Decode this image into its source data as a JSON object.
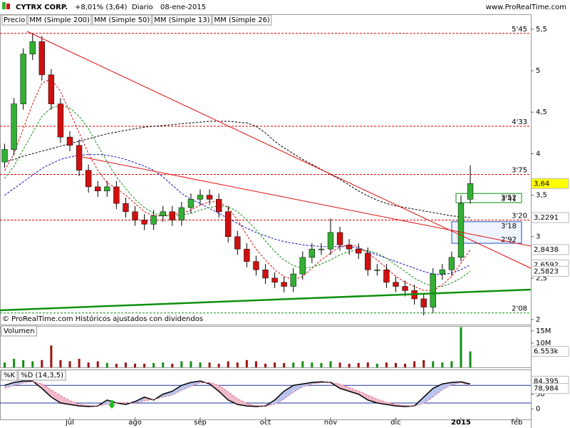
{
  "header": {
    "symbol": "CYTRX CORP.",
    "change": "+8,01% (3,64)",
    "period": "Diario",
    "date": "08-ene-2015",
    "site": "www.ProRealTime.com"
  },
  "chart_data": [
    {
      "type": "candlestick",
      "price_label": "Precio",
      "footer": "© ProRealTime.com  Históricos ajustados con dividendos",
      "categories": [
        null,
        null,
        null,
        null,
        null,
        null,
        null,
        "jul",
        null,
        null,
        null,
        null,
        null,
        null,
        "ago",
        null,
        null,
        null,
        null,
        null,
        null,
        "sep",
        null,
        null,
        null,
        null,
        null,
        null,
        "oct",
        null,
        null,
        null,
        null,
        null,
        null,
        "nov",
        null,
        null,
        null,
        null,
        null,
        null,
        "dic",
        null,
        null,
        null,
        null,
        null,
        null,
        "2015",
        null,
        null,
        null,
        null,
        null,
        "feb",
        null
      ],
      "open": [
        3.9,
        4.05,
        4.6,
        5.2,
        5.35,
        4.95,
        4.6,
        4.2,
        4.1,
        3.8,
        3.6,
        3.55,
        3.6,
        3.4,
        3.3,
        3.2,
        3.15,
        3.25,
        3.3,
        3.2,
        3.35,
        3.45,
        3.5,
        3.45,
        3.3,
        3.0,
        2.85,
        2.7,
        2.6,
        2.5,
        2.45,
        2.4,
        2.55,
        2.75,
        2.85,
        2.85,
        3.05,
        2.9,
        2.85,
        2.8,
        2.6,
        2.6,
        2.45,
        2.4,
        2.35,
        2.25,
        2.15,
        2.55,
        2.6,
        2.75,
        3.45,
        null,
        null,
        null,
        null,
        null,
        null
      ],
      "high": [
        4.12,
        4.67,
        5.27,
        5.45,
        5.42,
        5.02,
        4.67,
        4.27,
        4.17,
        3.87,
        3.67,
        3.67,
        3.67,
        3.47,
        3.37,
        3.27,
        3.32,
        3.37,
        3.37,
        3.42,
        3.52,
        3.57,
        3.57,
        3.52,
        3.37,
        3.07,
        2.92,
        2.77,
        2.67,
        2.57,
        2.52,
        2.62,
        2.82,
        2.92,
        2.92,
        3.22,
        3.12,
        2.97,
        2.92,
        2.87,
        2.67,
        2.67,
        2.52,
        2.47,
        2.42,
        2.32,
        2.62,
        2.67,
        2.82,
        3.5,
        3.86,
        null,
        null,
        null,
        null,
        null,
        null
      ],
      "low": [
        3.83,
        3.98,
        4.53,
        5.13,
        4.88,
        4.53,
        4.13,
        4.03,
        3.73,
        3.53,
        3.48,
        3.48,
        3.33,
        3.23,
        3.13,
        3.08,
        3.08,
        3.18,
        3.13,
        3.13,
        3.28,
        3.38,
        3.38,
        3.23,
        2.93,
        2.78,
        2.63,
        2.53,
        2.43,
        2.38,
        2.33,
        2.33,
        2.48,
        2.68,
        2.78,
        2.78,
        2.83,
        2.78,
        2.73,
        2.53,
        2.53,
        2.38,
        2.33,
        2.28,
        2.18,
        2.05,
        2.08,
        2.48,
        2.53,
        2.7,
        3.4,
        null,
        null,
        null,
        null,
        null,
        null
      ],
      "close": [
        4.05,
        4.6,
        5.2,
        5.35,
        4.95,
        4.6,
        4.2,
        4.1,
        3.8,
        3.6,
        3.55,
        3.6,
        3.4,
        3.3,
        3.2,
        3.15,
        3.25,
        3.3,
        3.2,
        3.35,
        3.45,
        3.5,
        3.45,
        3.3,
        3.0,
        2.85,
        2.7,
        2.6,
        2.5,
        2.45,
        2.4,
        2.55,
        2.75,
        2.85,
        2.85,
        3.05,
        2.9,
        2.85,
        2.8,
        2.6,
        2.6,
        2.45,
        2.4,
        2.35,
        2.25,
        2.15,
        2.55,
        2.6,
        2.75,
        3.4,
        3.64,
        null,
        null,
        null,
        null,
        null,
        null
      ],
      "last_label": "3,64",
      "tag_fill": "#ffff00",
      "up_color": "#33b033",
      "down_color": "#d01010",
      "series": [
        {
          "name": "MM (Simple 200)",
          "color": "#000000",
          "last_label": "3,2291",
          "values": [
            3.9,
            3.93,
            3.97,
            4.0,
            4.03,
            4.06,
            4.09,
            4.12,
            4.15,
            4.18,
            4.21,
            4.24,
            4.26,
            4.28,
            4.3,
            4.32,
            4.33,
            4.34,
            4.35,
            4.36,
            4.37,
            4.38,
            4.39,
            4.39,
            4.39,
            4.38,
            4.37,
            4.33,
            4.25,
            4.15,
            4.07,
            4.0,
            3.93,
            3.87,
            3.81,
            3.75,
            3.69,
            3.62,
            3.55,
            3.49,
            3.44,
            3.4,
            3.37,
            3.35,
            3.33,
            3.31,
            3.29,
            3.27,
            3.25,
            3.24,
            3.2291,
            null,
            null,
            null,
            null,
            null,
            null
          ]
        },
        {
          "name": "MM (Simple 50)",
          "color": "#1010c0",
          "last_label": "2,6592",
          "values": [
            3.5,
            3.58,
            3.66,
            3.74,
            3.82,
            3.88,
            3.93,
            3.96,
            3.98,
            3.99,
            3.99,
            3.98,
            3.96,
            3.93,
            3.89,
            3.85,
            3.8,
            3.72,
            3.62,
            3.52,
            3.45,
            3.4,
            3.34,
            3.28,
            3.22,
            3.16,
            3.1,
            3.05,
            3.01,
            2.97,
            2.94,
            2.92,
            2.9,
            2.89,
            2.88,
            2.88,
            2.88,
            2.88,
            2.86,
            2.82,
            2.78,
            2.74,
            2.7,
            2.66,
            2.62,
            2.58,
            2.55,
            2.54,
            2.56,
            2.6,
            2.6592,
            null,
            null,
            null,
            null,
            null,
            null
          ]
        },
        {
          "name": "MM (Simple 13)",
          "color": "#e01010",
          "last_label": "2,8438",
          "values": [
            3.8,
            4.0,
            4.3,
            4.6,
            4.85,
            4.9,
            4.75,
            4.5,
            4.25,
            4.0,
            3.8,
            3.65,
            3.58,
            3.5,
            3.4,
            3.3,
            3.25,
            3.25,
            3.27,
            3.28,
            3.32,
            3.38,
            3.42,
            3.42,
            3.35,
            3.2,
            3.02,
            2.85,
            2.72,
            2.6,
            2.52,
            2.48,
            2.52,
            2.62,
            2.72,
            2.8,
            2.88,
            2.9,
            2.88,
            2.8,
            2.72,
            2.62,
            2.52,
            2.45,
            2.4,
            2.35,
            2.35,
            2.42,
            2.52,
            2.68,
            2.8438,
            null,
            null,
            null,
            null,
            null,
            null
          ]
        },
        {
          "name": "MM (Simple 26)",
          "color": "#109010",
          "last_label": "2,5823",
          "values": [
            3.7,
            3.85,
            4.05,
            4.25,
            4.45,
            4.55,
            4.58,
            4.55,
            4.45,
            4.3,
            4.1,
            3.9,
            3.72,
            3.58,
            3.45,
            3.35,
            3.28,
            3.25,
            3.25,
            3.26,
            3.28,
            3.32,
            3.35,
            3.37,
            3.36,
            3.3,
            3.2,
            3.08,
            2.95,
            2.82,
            2.72,
            2.65,
            2.62,
            2.63,
            2.67,
            2.72,
            2.78,
            2.82,
            2.84,
            2.83,
            2.8,
            2.74,
            2.66,
            2.58,
            2.5,
            2.44,
            2.4,
            2.4,
            2.44,
            2.5,
            2.5823,
            null,
            null,
            null,
            null,
            null,
            null
          ]
        }
      ],
      "levels": [
        {
          "value": 5.45,
          "label": "5'45",
          "color": "#e00000"
        },
        {
          "value": 4.33,
          "label": "4'33",
          "color": "#e00000"
        },
        {
          "value": 3.75,
          "label": "3'75",
          "color": "#e00000"
        },
        {
          "value": 3.2,
          "label": "3'20",
          "color": "#e00000"
        },
        {
          "value": 2.08,
          "label": "2'08",
          "color": "#109010"
        }
      ],
      "zones": [
        {
          "top": {
            "value": 3.52,
            "label": "3'52"
          },
          "bottom": {
            "value": 3.41,
            "label": "3'41"
          },
          "color": "#109010",
          "fill": "#ffffff"
        },
        {
          "top": {
            "value": 3.18,
            "label": "3'18"
          },
          "bottom": {
            "value": 2.92,
            "label": "2'92"
          },
          "color": "#2050c0",
          "fill": "#eef3ff"
        }
      ],
      "ylim": [
        1.94,
        5.68
      ],
      "yticks": [
        {
          "value": 5.5,
          "label": "5,5"
        },
        5,
        {
          "value": 4.5,
          "label": "4,5"
        },
        4,
        {
          "value": 3.5,
          "label": "3,5"
        },
        3,
        {
          "value": 2.5,
          "label": "2,5"
        },
        2
      ],
      "grid": false
    },
    {
      "type": "bar",
      "title": "Volumen",
      "last_label": "6.553k",
      "up_color": "#109010",
      "down_color": "#a01010",
      "values": [
        2000000,
        3500000,
        3000000,
        2500000,
        3000000,
        9000000,
        3000000,
        2500000,
        3500000,
        2000000,
        2500000,
        1800000,
        1500000,
        2000000,
        1500000,
        1500000,
        1800000,
        2000000,
        1500000,
        2500000,
        2500000,
        2000000,
        2000000,
        1500000,
        2500000,
        2000000,
        3000000,
        2500000,
        1500000,
        2000000,
        1800000,
        2000000,
        2500000,
        2000000,
        1800000,
        2500000,
        2000000,
        1500000,
        1800000,
        2000000,
        1500000,
        2000000,
        1800000,
        1500000,
        2500000,
        3000000,
        2500000,
        2000000,
        2500000,
        16500000,
        6553000,
        null,
        null,
        null,
        null,
        null,
        null
      ],
      "ylim": [
        0,
        17000000
      ],
      "yticks": [
        {
          "value": 15000000,
          "label": "15M"
        },
        {
          "value": 10000000,
          "label": "10M"
        }
      ]
    },
    {
      "type": "line",
      "ylim": [
        -36,
        134
      ],
      "yticks": [
        100,
        50,
        0
      ],
      "levels": [
        80,
        20
      ],
      "series": [
        {
          "name": "%K",
          "color": "#000000",
          "last_label": "84,395",
          "values": [
            80,
            90,
            95,
            95,
            70,
            40,
            20,
            15,
            10,
            8,
            10,
            30,
            20,
            15,
            25,
            40,
            30,
            50,
            60,
            80,
            90,
            95,
            85,
            60,
            30,
            15,
            10,
            8,
            10,
            30,
            60,
            80,
            85,
            90,
            92,
            90,
            70,
            60,
            50,
            30,
            20,
            15,
            10,
            8,
            10,
            40,
            70,
            85,
            90,
            92,
            84.395,
            null,
            null,
            null,
            null,
            null,
            null
          ]
        },
        {
          "name": "%D (14,3,5)",
          "color": "#e07090",
          "last_label": "78,984",
          "values": [
            70,
            80,
            88,
            93,
            85,
            65,
            45,
            28,
            16,
            11,
            10,
            16,
            20,
            22,
            20,
            27,
            32,
            40,
            47,
            63,
            77,
            88,
            90,
            80,
            58,
            35,
            18,
            11,
            9,
            16,
            33,
            57,
            75,
            85,
            89,
            91,
            84,
            73,
            60,
            47,
            33,
            22,
            15,
            11,
            9,
            19,
            40,
            65,
            82,
            89,
            78.984,
            null,
            null,
            null,
            null,
            null,
            null
          ]
        }
      ]
    }
  ]
}
